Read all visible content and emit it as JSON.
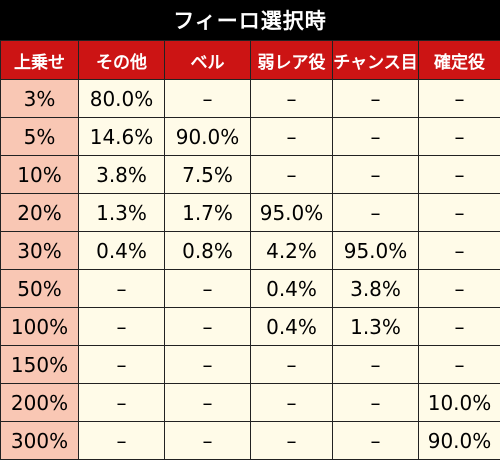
{
  "title": "フィーロ選択時",
  "headers": [
    "上乗せ",
    "その他",
    "ベル",
    "弱レア役",
    "チャンス目",
    "確定役"
  ],
  "rows": [
    {
      "label": "3%",
      "cells": [
        "80.0%",
        "–",
        "–",
        "–",
        "–"
      ]
    },
    {
      "label": "5%",
      "cells": [
        "14.6%",
        "90.0%",
        "–",
        "–",
        "–"
      ]
    },
    {
      "label": "10%",
      "cells": [
        "3.8%",
        "7.5%",
        "–",
        "–",
        "–"
      ]
    },
    {
      "label": "20%",
      "cells": [
        "1.3%",
        "1.7%",
        "95.0%",
        "–",
        "–"
      ]
    },
    {
      "label": "30%",
      "cells": [
        "0.4%",
        "0.8%",
        "4.2%",
        "95.0%",
        "–"
      ]
    },
    {
      "label": "50%",
      "cells": [
        "–",
        "–",
        "0.4%",
        "3.8%",
        "–"
      ]
    },
    {
      "label": "100%",
      "cells": [
        "–",
        "–",
        "0.4%",
        "1.3%",
        "–"
      ]
    },
    {
      "label": "150%",
      "cells": [
        "–",
        "–",
        "–",
        "–",
        "–"
      ]
    },
    {
      "label": "200%",
      "cells": [
        "–",
        "–",
        "–",
        "–",
        "10.0%"
      ]
    },
    {
      "label": "300%",
      "cells": [
        "–",
        "–",
        "–",
        "–",
        "90.0%"
      ]
    }
  ]
}
